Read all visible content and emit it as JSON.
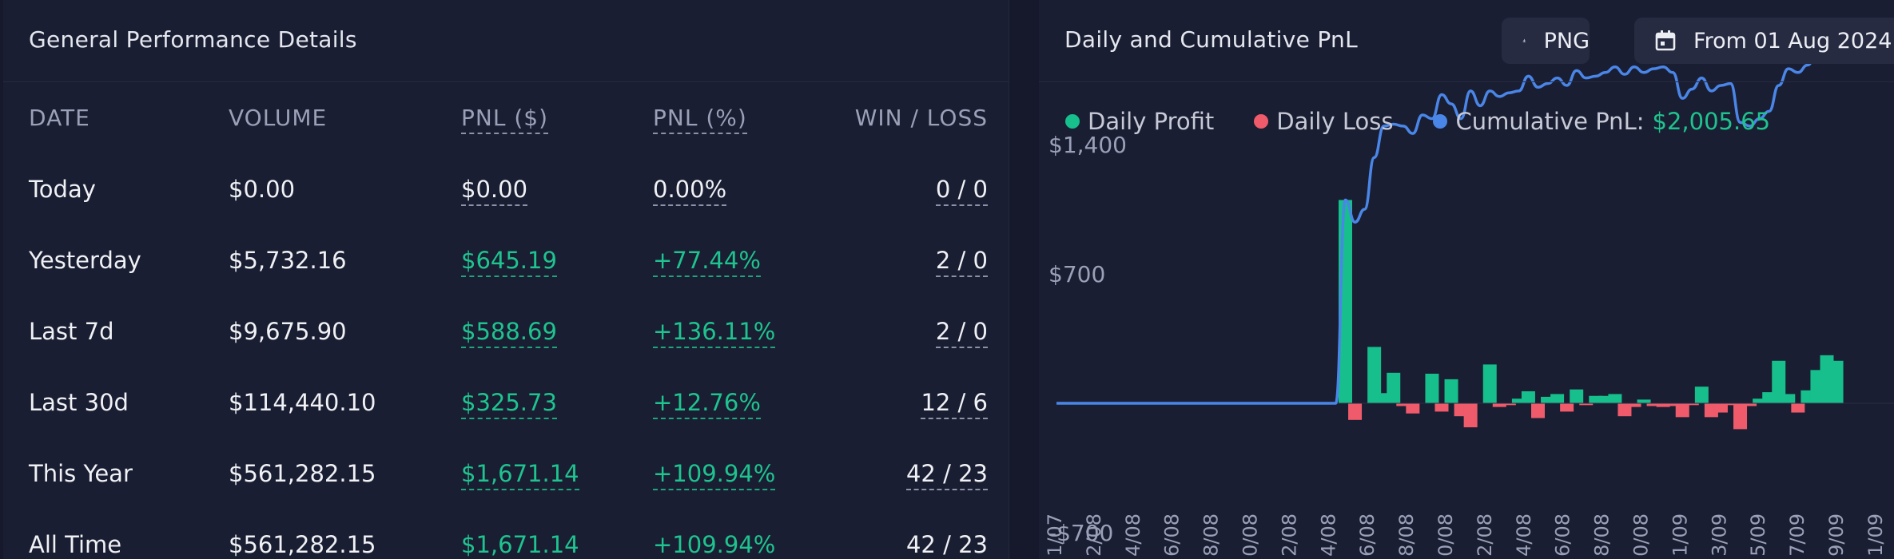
{
  "left": {
    "title": "General Performance Details",
    "columns": [
      "DATE",
      "VOLUME",
      "PNL ($)",
      "PNL (%)",
      "WIN / LOSS"
    ],
    "rows": [
      {
        "date": "Today",
        "volume": "$0.00",
        "pnl": "$0.00",
        "pct": "0.00%",
        "wl": "0 / 0",
        "positive": false
      },
      {
        "date": "Yesterday",
        "volume": "$5,732.16",
        "pnl": "$645.19",
        "pct": "+77.44%",
        "wl": "2 / 0",
        "positive": true
      },
      {
        "date": "Last 7d",
        "volume": "$9,675.90",
        "pnl": "$588.69",
        "pct": "+136.11%",
        "wl": "2 / 0",
        "positive": true
      },
      {
        "date": "Last 30d",
        "volume": "$114,440.10",
        "pnl": "$325.73",
        "pct": "+12.76%",
        "wl": "12 / 6",
        "positive": true
      },
      {
        "date": "This Year",
        "volume": "$561,282.15",
        "pnl": "$1,671.14",
        "pct": "+109.94%",
        "wl": "42 / 23",
        "positive": true
      },
      {
        "date": "All Time",
        "volume": "$561,282.15",
        "pnl": "$1,671.14",
        "pct": "+109.94%",
        "wl": "42 / 23",
        "positive": true
      }
    ]
  },
  "right": {
    "title": "Daily and Cumulative PnL",
    "png_label": "PNG",
    "date_label": "From 01 Aug 2024",
    "legend": {
      "profit": "Daily Profit",
      "loss": "Daily Loss",
      "cumulative": "Cumulative PnL:",
      "cumulative_value": "$2,005.65"
    }
  },
  "colors": {
    "profit": "#16bf8b",
    "loss": "#ef5b6b",
    "cumulative": "#4a86e8",
    "positive_text": "#1fc38f"
  },
  "chart_data": {
    "type": "bar",
    "y_ticks": [
      "$1,400",
      "$700",
      "-$700"
    ],
    "ylim": [
      -700,
      1400
    ],
    "x_tick_labels": [
      "1/07",
      "2/08",
      "4/08",
      "6/08",
      "8/08",
      "0/08",
      "2/08",
      "4/08",
      "6/08",
      "8/08",
      "0/08",
      "2/08",
      "4/08",
      "6/08",
      "8/08",
      "0/08",
      "1/09",
      "3/09",
      "5/09",
      "7/09",
      "9/09",
      "1/09"
    ],
    "bars": [
      0,
      0,
      0,
      0,
      0,
      0,
      0,
      0,
      0,
      0,
      0,
      0,
      0,
      0,
      0,
      0,
      0,
      0,
      0,
      0,
      0,
      0,
      0,
      0,
      0,
      0,
      0,
      0,
      0,
      0,
      1100,
      -90,
      0,
      305,
      55,
      165,
      -15,
      -55,
      0,
      160,
      -45,
      130,
      -70,
      -130,
      0,
      210,
      -20,
      -10,
      25,
      65,
      -80,
      35,
      50,
      -45,
      75,
      -10,
      40,
      40,
      50,
      -70,
      -20,
      20,
      -15,
      -20,
      -15,
      -75,
      -10,
      90,
      -75,
      -50,
      -10,
      -140,
      -15,
      25,
      60,
      230,
      50,
      -50,
      70,
      180,
      260,
      230
    ],
    "cumulative": [
      0,
      0,
      0,
      0,
      0,
      0,
      0,
      0,
      0,
      0,
      0,
      0,
      0,
      0,
      0,
      0,
      0,
      0,
      0,
      0,
      0,
      0,
      0,
      0,
      0,
      0,
      0,
      0,
      0,
      0,
      1100,
      980,
      1050,
      1330,
      1500,
      1510,
      1500,
      1460,
      1560,
      1540,
      1670,
      1620,
      1540,
      1690,
      1610,
      1690,
      1660,
      1680,
      1690,
      1770,
      1710,
      1730,
      1760,
      1720,
      1800,
      1760,
      1770,
      1790,
      1820,
      1780,
      1820,
      1790,
      1810,
      1820,
      1790,
      1650,
      1700,
      1760,
      1690,
      1720,
      1730,
      1520,
      1500,
      1540,
      1580,
      1720,
      1810,
      1790,
      1830,
      1900,
      2005,
      2006
    ]
  }
}
